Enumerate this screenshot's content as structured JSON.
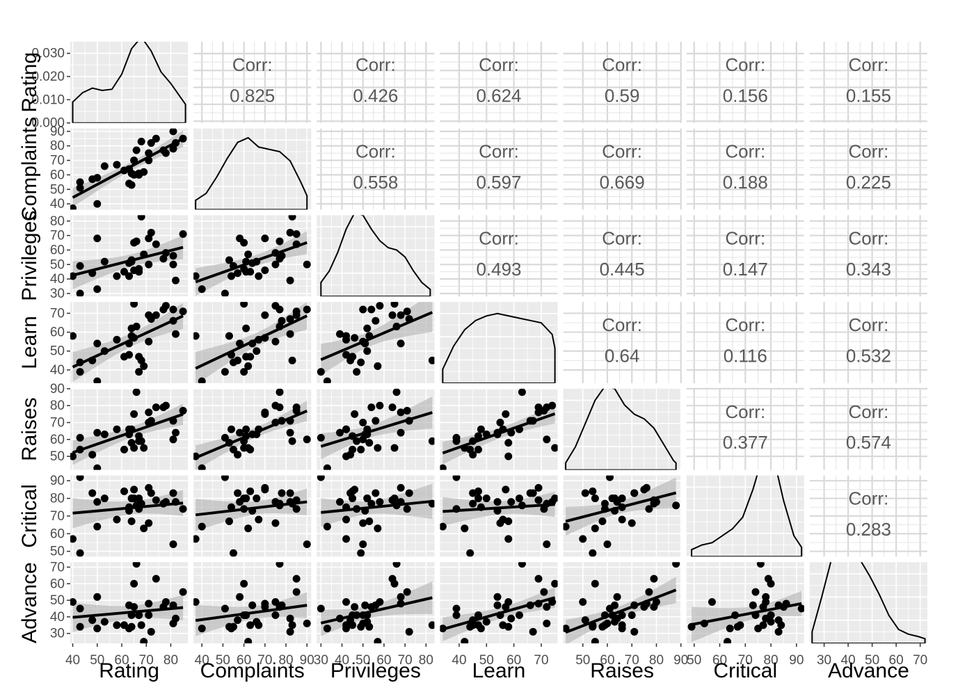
{
  "chart_data": {
    "type": "scatter",
    "variables": [
      "Rating",
      "Complaints",
      "Privileges",
      "Learn",
      "Raises",
      "Critical",
      "Advance"
    ],
    "axes": {
      "Rating": {
        "lim": [
          39,
          87
        ],
        "breaks": [
          40,
          50,
          60,
          70,
          80
        ]
      },
      "Complaints": {
        "lim": [
          36,
          92
        ],
        "breaks": [
          40,
          50,
          60,
          70,
          80,
          90
        ]
      },
      "Privileges": {
        "lim": [
          28,
          84
        ],
        "breaks": [
          30,
          40,
          50,
          60,
          70,
          80
        ]
      },
      "Learn": {
        "lim": [
          33,
          76
        ],
        "breaks": [
          40,
          50,
          60,
          70
        ]
      },
      "Raises": {
        "lim": [
          42,
          90
        ],
        "breaks": [
          50,
          60,
          70,
          80,
          90
        ]
      },
      "Critical": {
        "lim": [
          47,
          93
        ],
        "breaks": [
          50,
          60,
          70,
          80,
          90
        ]
      },
      "Advance": {
        "lim": [
          24,
          73
        ],
        "breaks": [
          30,
          40,
          50,
          60,
          70
        ]
      }
    },
    "density_axis": {
      "lim": [
        0,
        0.035
      ],
      "breaks": [
        0.0,
        0.01,
        0.02,
        0.03
      ],
      "labels": [
        "0.000",
        "0.010",
        "0.020",
        "0.030"
      ]
    },
    "corr_label": "Corr:",
    "correlations": [
      [
        "",
        "0.825",
        "0.426",
        "0.624",
        "0.59",
        "0.156",
        "0.155"
      ],
      [
        "",
        "",
        "0.558",
        "0.597",
        "0.669",
        "0.188",
        "0.225"
      ],
      [
        "",
        "",
        "",
        "0.493",
        "0.445",
        "0.147",
        "0.343"
      ],
      [
        "",
        "",
        "",
        "",
        "0.64",
        "0.116",
        "0.532"
      ],
      [
        "",
        "",
        "",
        "",
        "",
        "0.377",
        "0.574"
      ],
      [
        "",
        "",
        "",
        "",
        "",
        "",
        "0.283"
      ],
      [
        "",
        "",
        "",
        "",
        "",
        "",
        ""
      ]
    ],
    "observations": [
      [
        43,
        51,
        30,
        39,
        61,
        92,
        45
      ],
      [
        63,
        64,
        51,
        54,
        63,
        73,
        47
      ],
      [
        71,
        70,
        68,
        69,
        76,
        86,
        48
      ],
      [
        61,
        63,
        45,
        47,
        54,
        84,
        35
      ],
      [
        81,
        78,
        56,
        66,
        71,
        83,
        47
      ],
      [
        43,
        55,
        49,
        44,
        54,
        49,
        34
      ],
      [
        58,
        67,
        42,
        56,
        66,
        68,
        35
      ],
      [
        71,
        75,
        50,
        55,
        70,
        66,
        41
      ],
      [
        72,
        82,
        72,
        67,
        71,
        83,
        31
      ],
      [
        67,
        61,
        45,
        47,
        62,
        80,
        41
      ],
      [
        64,
        53,
        53,
        58,
        58,
        67,
        34
      ],
      [
        67,
        60,
        47,
        39,
        59,
        74,
        41
      ],
      [
        69,
        62,
        57,
        42,
        55,
        63,
        25
      ],
      [
        68,
        83,
        83,
        45,
        59,
        77,
        35
      ],
      [
        77,
        77,
        54,
        72,
        79,
        77,
        46
      ],
      [
        81,
        90,
        50,
        72,
        60,
        54,
        36
      ],
      [
        74,
        85,
        64,
        69,
        79,
        79,
        63
      ],
      [
        65,
        60,
        65,
        75,
        55,
        80,
        60
      ],
      [
        65,
        70,
        46,
        57,
        75,
        85,
        46
      ],
      [
        50,
        58,
        68,
        54,
        64,
        78,
        52
      ],
      [
        50,
        40,
        33,
        34,
        43,
        64,
        33
      ],
      [
        64,
        61,
        52,
        62,
        66,
        80,
        41
      ],
      [
        53,
        66,
        52,
        50,
        63,
        80,
        37
      ],
      [
        40,
        37,
        42,
        58,
        50,
        57,
        49
      ],
      [
        63,
        54,
        42,
        48,
        66,
        75,
        33
      ],
      [
        66,
        77,
        66,
        63,
        88,
        76,
        72
      ],
      [
        78,
        75,
        58,
        74,
        80,
        78,
        49
      ],
      [
        48,
        57,
        44,
        45,
        51,
        83,
        38
      ],
      [
        85,
        85,
        71,
        71,
        77,
        74,
        55
      ],
      [
        82,
        82,
        39,
        59,
        64,
        78,
        39
      ]
    ],
    "densities": [
      {
        "x": [
          40,
          44,
          48,
          52,
          56,
          60,
          64,
          68,
          72,
          76,
          80,
          84,
          86
        ],
        "y": [
          0.009,
          0.013,
          0.015,
          0.014,
          0.0145,
          0.021,
          0.032,
          0.037,
          0.031,
          0.022,
          0.017,
          0.011,
          0.008
        ]
      },
      {
        "x": [
          37,
          42,
          47,
          52,
          57,
          62,
          67,
          72,
          77,
          82,
          87,
          90
        ],
        "y": [
          0.004,
          0.007,
          0.014,
          0.022,
          0.029,
          0.031,
          0.027,
          0.026,
          0.025,
          0.021,
          0.012,
          0.006
        ]
      },
      {
        "x": [
          30,
          34,
          38,
          42,
          46,
          50,
          54,
          58,
          62,
          66,
          70,
          74,
          78,
          82
        ],
        "y": [
          0.006,
          0.011,
          0.019,
          0.029,
          0.036,
          0.035,
          0.029,
          0.024,
          0.021,
          0.02,
          0.017,
          0.011,
          0.006,
          0.003
        ]
      },
      {
        "x": [
          34,
          38,
          42,
          46,
          50,
          54,
          58,
          62,
          66,
          70,
          74,
          75
        ],
        "y": [
          0.006,
          0.016,
          0.023,
          0.027,
          0.029,
          0.03,
          0.029,
          0.028,
          0.027,
          0.026,
          0.021,
          0.015
        ]
      },
      {
        "x": [
          43,
          47,
          51,
          55,
          59,
          63,
          67,
          71,
          75,
          79,
          83,
          87,
          88
        ],
        "y": [
          0.003,
          0.01,
          0.02,
          0.03,
          0.036,
          0.035,
          0.028,
          0.024,
          0.022,
          0.018,
          0.011,
          0.004,
          0.003
        ]
      },
      {
        "x": [
          49,
          53,
          57,
          61,
          65,
          69,
          73,
          77,
          79,
          81,
          85,
          89,
          92
        ],
        "y": [
          0.003,
          0.005,
          0.006,
          0.009,
          0.012,
          0.017,
          0.029,
          0.044,
          0.047,
          0.043,
          0.024,
          0.009,
          0.004
        ]
      },
      {
        "x": [
          25,
          29,
          33,
          37,
          41,
          45,
          49,
          53,
          57,
          61,
          65,
          69,
          72
        ],
        "y": [
          0.005,
          0.02,
          0.036,
          0.043,
          0.041,
          0.036,
          0.029,
          0.021,
          0.012,
          0.006,
          0.004,
          0.003,
          0.002
        ]
      }
    ]
  }
}
